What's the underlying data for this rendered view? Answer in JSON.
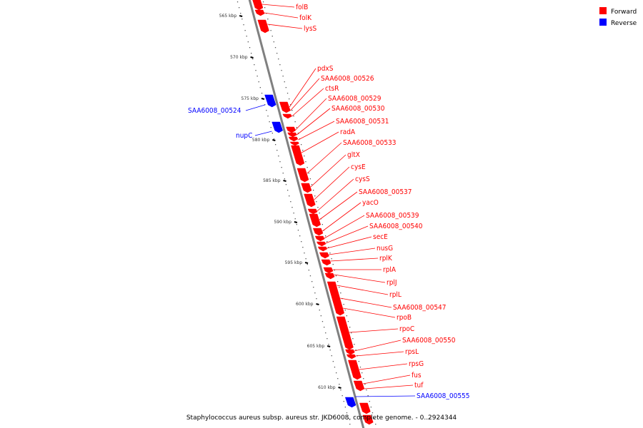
{
  "caption": "Staphylococcus aureus subsp. aureus str. JKD6008, complete genome. - 0..2924344",
  "legend": [
    {
      "label": "Forward",
      "color": "#ff0000"
    },
    {
      "label": "Reverse",
      "color": "#0000ff"
    }
  ],
  "colors": {
    "forward": "#ff0000",
    "reverse": "#0000ff",
    "backbone": "#808080"
  },
  "kbp_labels": [
    "565 kbp",
    "570 kbp",
    "575 kbp",
    "580 kbp",
    "585 kbp",
    "590 kbp",
    "595 kbp",
    "600 kbp",
    "605 kbp",
    "610 kbp"
  ],
  "genes": [
    {
      "name": "folB",
      "strand": "forward"
    },
    {
      "name": "folK",
      "strand": "forward"
    },
    {
      "name": "lysS",
      "strand": "forward"
    },
    {
      "name": "pdxS",
      "strand": "forward"
    },
    {
      "name": "SAA6008_00526",
      "strand": "forward"
    },
    {
      "name": "ctsR",
      "strand": "forward"
    },
    {
      "name": "SAA6008_00529",
      "strand": "forward"
    },
    {
      "name": "SAA6008_00530",
      "strand": "forward"
    },
    {
      "name": "SAA6008_00531",
      "strand": "forward"
    },
    {
      "name": "radA",
      "strand": "forward"
    },
    {
      "name": "SAA6008_00533",
      "strand": "forward"
    },
    {
      "name": "gltX",
      "strand": "forward"
    },
    {
      "name": "cysE",
      "strand": "forward"
    },
    {
      "name": "cysS",
      "strand": "forward"
    },
    {
      "name": "SAA6008_00537",
      "strand": "forward"
    },
    {
      "name": "yacO",
      "strand": "forward"
    },
    {
      "name": "SAA6008_00539",
      "strand": "forward"
    },
    {
      "name": "SAA6008_00540",
      "strand": "forward"
    },
    {
      "name": "secE",
      "strand": "forward"
    },
    {
      "name": "nusG",
      "strand": "forward"
    },
    {
      "name": "rplK",
      "strand": "forward"
    },
    {
      "name": "rplA",
      "strand": "forward"
    },
    {
      "name": "rplJ",
      "strand": "forward"
    },
    {
      "name": "rplL",
      "strand": "forward"
    },
    {
      "name": "SAA6008_00547",
      "strand": "forward"
    },
    {
      "name": "rpoB",
      "strand": "forward"
    },
    {
      "name": "rpoC",
      "strand": "forward"
    },
    {
      "name": "SAA6008_00550",
      "strand": "forward"
    },
    {
      "name": "rpsL",
      "strand": "forward"
    },
    {
      "name": "rpsG",
      "strand": "forward"
    },
    {
      "name": "fus",
      "strand": "forward"
    },
    {
      "name": "tuf",
      "strand": "forward"
    },
    {
      "name": "SAA6008_00524",
      "strand": "reverse"
    },
    {
      "name": "nupC",
      "strand": "reverse"
    },
    {
      "name": "SAA6008_00555",
      "strand": "reverse"
    }
  ]
}
